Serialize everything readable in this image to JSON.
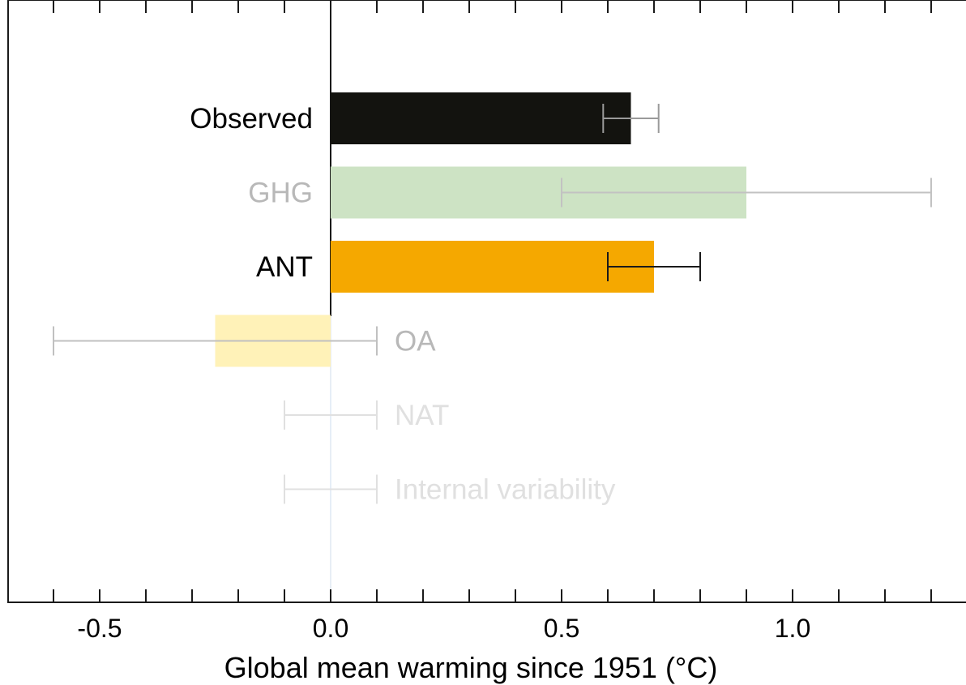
{
  "chart_data": {
    "type": "bar",
    "orientation": "horizontal",
    "title": "",
    "xlabel": "Global mean warming since 1951 (°C)",
    "ylabel": "",
    "xlim": [
      -0.7,
      1.37
    ],
    "grid": false,
    "legend": "none",
    "x_tick_labels": [
      {
        "value": -0.5,
        "label": "-0.5"
      },
      {
        "value": 0.0,
        "label": "0.0"
      },
      {
        "value": 0.5,
        "label": "0.5"
      },
      {
        "value": 1.0,
        "label": "1.0"
      }
    ],
    "x_minor_ticks_step": 0.1,
    "bars": [
      {
        "label": "Observed",
        "value": 0.65,
        "err_low": 0.59,
        "err_high": 0.71,
        "bar_color": "#13130f",
        "error_color": "#9a9a9a",
        "label_color": "#000000",
        "label_side": "left"
      },
      {
        "label": "GHG",
        "value": 0.9,
        "err_low": 0.5,
        "err_high": 1.3,
        "bar_color": "#cde3c4",
        "error_color": "#c2c2c2",
        "label_color": "#b8b8b8",
        "label_side": "left"
      },
      {
        "label": "ANT",
        "value": 0.7,
        "err_low": 0.6,
        "err_high": 0.8,
        "bar_color": "#f5a800",
        "error_color": "#1a1a1a",
        "label_color": "#000000",
        "label_side": "left"
      },
      {
        "label": "OA",
        "value": -0.25,
        "err_low": -0.6,
        "err_high": 0.1,
        "bar_color": "#fff2b8",
        "error_color": "#c0c0c0",
        "label_color": "#b8b8b8",
        "label_side": "right"
      },
      {
        "label": "NAT",
        "value": 0.0,
        "err_low": -0.1,
        "err_high": 0.1,
        "bar_color": "#e6eef7",
        "error_color": "#e0e0e0",
        "label_color": "#e0e0e0",
        "label_side": "right"
      },
      {
        "label": "Internal variability",
        "value": 0.0,
        "err_low": -0.1,
        "err_high": 0.1,
        "bar_color": "#e6eef7",
        "error_color": "#e0e0e0",
        "label_color": "#e0e0e0",
        "label_side": "right"
      }
    ]
  }
}
